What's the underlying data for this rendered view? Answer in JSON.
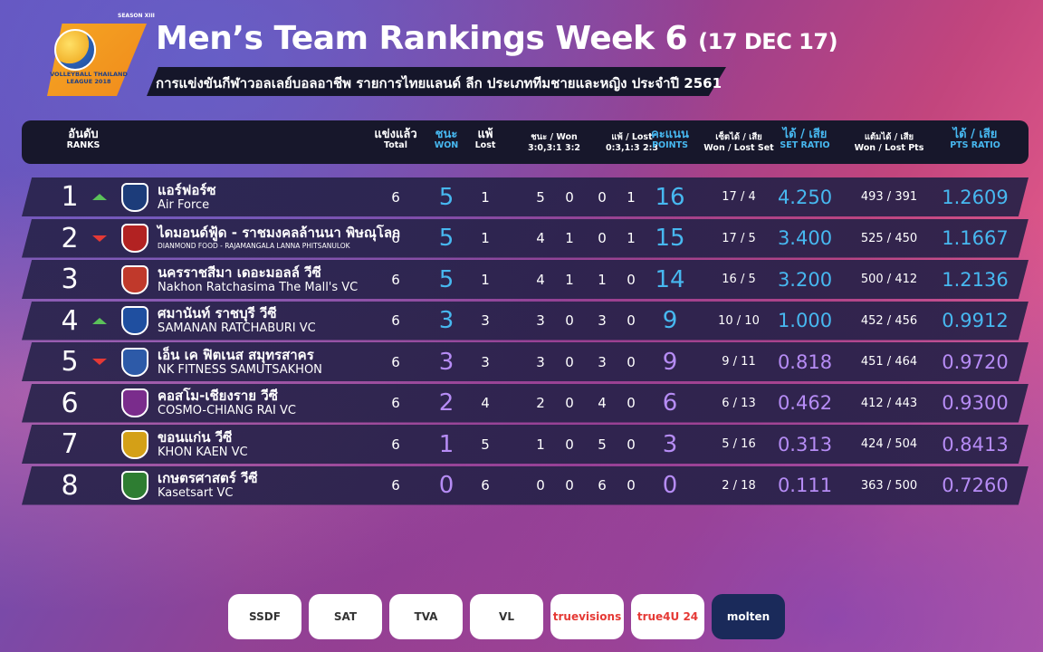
{
  "header": {
    "season": "SEASON XIII",
    "logo_text": "VOLLEYBALL THAILAND LEAGUE 2018",
    "title": "Men’s Team Rankings Week 6",
    "title_date": "(17 DEC 17)",
    "subtitle": "การแข่งขันกีฬาวอลเลย์บอลอาชีพ รายการไทยแลนด์ ลีก ประเภททีมชายและหญิง ประจำปี 2561"
  },
  "columns": {
    "rank_th": "อันดับ",
    "rank_en": "RANKS",
    "total_th": "แข่งแล้ว",
    "total_en": "Total",
    "won_th": "ชนะ",
    "won_en": "WON",
    "lost_th": "แพ้",
    "lost_en": "Lost",
    "wonby_th": "ชนะ / Won",
    "wonby_en": "3:0,3:1   3:2",
    "lostby_th": "แพ้ / Lost",
    "lostby_en": "0:3,1:3   2:3",
    "points_th": "คะแนน",
    "points_en": "POINTS",
    "sets_th": "เซ็ตได้ / เสีย",
    "sets_en": "Won / Lost Set",
    "setratio_th": "ได้ / เสีย",
    "setratio_en": "SET RATIO",
    "ptswl_th": "แต้มได้ / เสีย",
    "ptswl_en": "Won / Lost Pts",
    "ptsratio_th": "ได้ / เสีย",
    "ptsratio_en": "PTS RATIO"
  },
  "colors": {
    "blue": "#47b8f0",
    "purple": "#b68cf5",
    "up": "#5bc15a",
    "down": "#e53935"
  },
  "teams": [
    {
      "rank": "1",
      "trend": "up",
      "th": "แอร์ฟอร์ซ",
      "en": "Air Force",
      "total": "6",
      "won": "5",
      "lost": "1",
      "w30": "5",
      "w32": "0",
      "l03": "0",
      "l23": "1",
      "points": "16",
      "sets": "17 / 4",
      "set_ratio": "4.250",
      "pts_wl": "493 / 391",
      "pts_ratio": "1.2609",
      "crest": "#1c3c7a",
      "tone": "blue"
    },
    {
      "rank": "2",
      "trend": "down",
      "th": "ไดมอนด์ฟู้ด - ราชมงคลล้านนา พิษณุโลก",
      "en": "DIANMOND FOOD - RAJAMANGALA LANNA PHITSANULOK",
      "en_small": true,
      "total": "6",
      "won": "5",
      "lost": "1",
      "w30": "4",
      "w32": "1",
      "l03": "0",
      "l23": "1",
      "points": "15",
      "sets": "17 / 5",
      "set_ratio": "3.400",
      "pts_wl": "525 / 450",
      "pts_ratio": "1.1667",
      "crest": "#b22222",
      "tone": "blue"
    },
    {
      "rank": "3",
      "trend": "",
      "th": "นครราชสีมา เดอะมอลล์ วีซี",
      "en": "Nakhon Ratchasima The Mall's VC",
      "total": "6",
      "won": "5",
      "lost": "1",
      "w30": "4",
      "w32": "1",
      "l03": "1",
      "l23": "0",
      "points": "14",
      "sets": "16 / 5",
      "set_ratio": "3.200",
      "pts_wl": "500 / 412",
      "pts_ratio": "1.2136",
      "crest": "#c0392b",
      "tone": "blue"
    },
    {
      "rank": "4",
      "trend": "up",
      "th": "ศมานันท์ ราชบุรี วีซี",
      "en": "SAMANAN RATCHABURI VC",
      "total": "6",
      "won": "3",
      "lost": "3",
      "w30": "3",
      "w32": "0",
      "l03": "3",
      "l23": "0",
      "points": "9",
      "sets": "10 / 10",
      "set_ratio": "1.000",
      "pts_wl": "452 / 456",
      "pts_ratio": "0.9912",
      "crest": "#1f4fa0",
      "tone": "blue"
    },
    {
      "rank": "5",
      "trend": "down",
      "th": "เอ็น เค ฟิตเนส สมุทรสาคร",
      "en": "NK FITNESS SAMUTSAKHON",
      "total": "6",
      "won": "3",
      "lost": "3",
      "w30": "3",
      "w32": "0",
      "l03": "3",
      "l23": "0",
      "points": "9",
      "sets": "9 / 11",
      "set_ratio": "0.818",
      "pts_wl": "451 / 464",
      "pts_ratio": "0.9720",
      "crest": "#2d5aa8",
      "tone": "purple"
    },
    {
      "rank": "6",
      "trend": "",
      "th": "คอสโม-เชียงราย วีซี",
      "en": "COSMO-CHIANG RAI VC",
      "total": "6",
      "won": "2",
      "lost": "4",
      "w30": "2",
      "w32": "0",
      "l03": "4",
      "l23": "0",
      "points": "6",
      "sets": "6 / 13",
      "set_ratio": "0.462",
      "pts_wl": "412 / 443",
      "pts_ratio": "0.9300",
      "crest": "#7a2c8c",
      "tone": "purple"
    },
    {
      "rank": "7",
      "trend": "",
      "th": "ขอนแก่น วีซี",
      "en": "KHON KAEN VC",
      "total": "6",
      "won": "1",
      "lost": "5",
      "w30": "1",
      "w32": "0",
      "l03": "5",
      "l23": "0",
      "points": "3",
      "sets": "5 / 16",
      "set_ratio": "0.313",
      "pts_wl": "424 / 504",
      "pts_ratio": "0.8413",
      "crest": "#d4a017",
      "tone": "purple"
    },
    {
      "rank": "8",
      "trend": "",
      "th": "เกษตรศาสตร์ วีซี",
      "en": "Kasetsart VC",
      "total": "6",
      "won": "0",
      "lost": "6",
      "w30": "0",
      "w32": "0",
      "l03": "6",
      "l23": "0",
      "points": "0",
      "sets": "2 / 18",
      "set_ratio": "0.111",
      "pts_wl": "363 / 500",
      "pts_ratio": "0.7260",
      "crest": "#2e7d32",
      "tone": "purple"
    }
  ],
  "sponsors": [
    "SSDF",
    "SAT",
    "TVA",
    "VL",
    "truevisions",
    "true4U 24",
    "molten"
  ]
}
